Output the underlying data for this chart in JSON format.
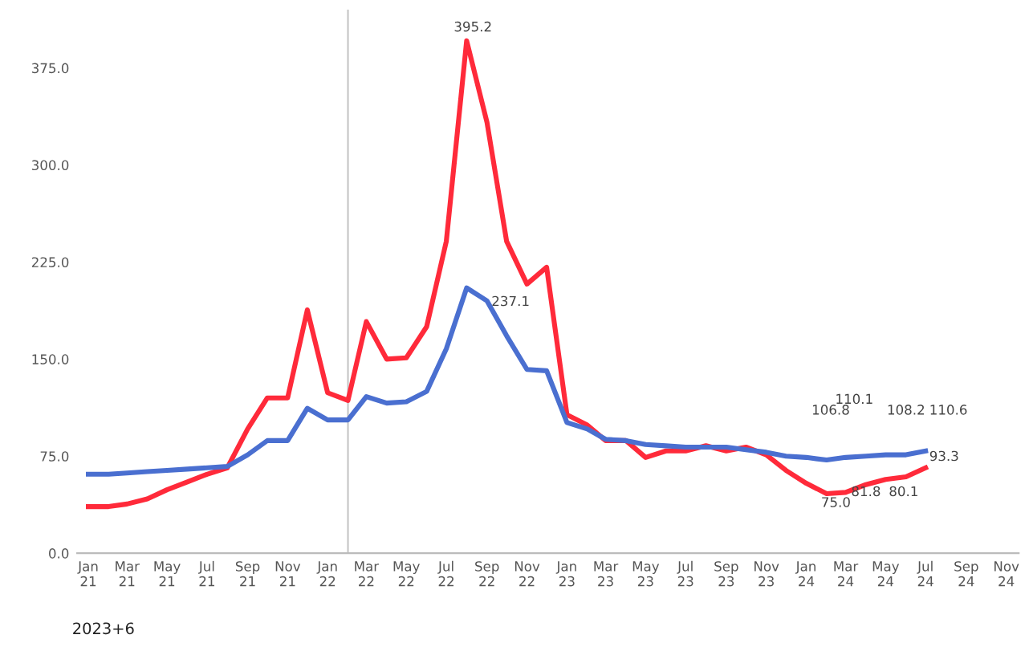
{
  "chart_data": {
    "type": "line",
    "x": [
      "2021-01",
      "2021-02",
      "2021-03",
      "2021-04",
      "2021-05",
      "2021-06",
      "2021-07",
      "2021-08",
      "2021-09",
      "2021-10",
      "2021-11",
      "2021-12",
      "2022-01",
      "2022-02",
      "2022-03",
      "2022-04",
      "2022-05",
      "2022-06",
      "2022-07",
      "2022-08",
      "2022-09",
      "2022-10",
      "2022-11",
      "2022-12",
      "2023-01",
      "2023-02",
      "2023-03",
      "2023-04",
      "2023-05",
      "2023-06",
      "2023-07",
      "2023-08",
      "2023-09",
      "2023-10",
      "2023-11",
      "2023-12",
      "2024-01",
      "2024-02",
      "2024-03",
      "2024-04",
      "2024-05",
      "2024-06",
      "2024-07"
    ],
    "series": [
      {
        "color": "#ff2a3a",
        "values": [
          36,
          36,
          38,
          42,
          49,
          55,
          61,
          66,
          96,
          120,
          120,
          188,
          124,
          118,
          179,
          150,
          151,
          175,
          241,
          396,
          333,
          241,
          208,
          221,
          107,
          99,
          87,
          87,
          74,
          79,
          79,
          83,
          79,
          82,
          76,
          64,
          54,
          46,
          47,
          53,
          57,
          59,
          66
        ]
      },
      {
        "color": "#4a6fd0",
        "values": [
          61,
          61,
          62,
          63,
          64,
          65,
          66,
          67,
          76,
          87,
          87,
          112,
          103,
          103,
          121,
          116,
          117,
          125,
          158,
          205,
          195,
          168,
          142,
          141,
          101,
          96,
          88,
          87,
          84,
          83,
          82,
          82,
          82,
          80,
          78,
          75,
          74,
          72,
          74,
          75,
          76,
          76,
          79
        ]
      }
    ],
    "xlim": [
      "2020-12-15",
      "2024-11-20"
    ],
    "xticks": [
      {
        "value": "2021-01",
        "label": "Jan\n21"
      },
      {
        "value": "2021-03",
        "label": "Mar\n21"
      },
      {
        "value": "2021-05",
        "label": "May\n21"
      },
      {
        "value": "2021-07",
        "label": "Jul\n21"
      },
      {
        "value": "2021-09",
        "label": "Sep\n21"
      },
      {
        "value": "2021-11",
        "label": "Nov\n21"
      },
      {
        "value": "2022-01",
        "label": "Jan\n22"
      },
      {
        "value": "2022-03",
        "label": "Mar\n22"
      },
      {
        "value": "2022-05",
        "label": "May\n22"
      },
      {
        "value": "2022-07",
        "label": "Jul\n22"
      },
      {
        "value": "2022-09",
        "label": "Sep\n22"
      },
      {
        "value": "2022-11",
        "label": "Nov\n22"
      },
      {
        "value": "2023-01",
        "label": "Jan\n23"
      },
      {
        "value": "2023-03",
        "label": "Mar\n23"
      },
      {
        "value": "2023-05",
        "label": "May\n23"
      },
      {
        "value": "2023-07",
        "label": "Jul\n23"
      },
      {
        "value": "2023-09",
        "label": "Sep\n23"
      },
      {
        "value": "2023-11",
        "label": "Nov\n23"
      },
      {
        "value": "2024-01",
        "label": "Jan\n24"
      },
      {
        "value": "2024-03",
        "label": "Mar\n24"
      },
      {
        "value": "2024-05",
        "label": "May\n24"
      },
      {
        "value": "2024-07",
        "label": "Jul\n24"
      },
      {
        "value": "2024-09",
        "label": "Sep\n24"
      },
      {
        "value": "2024-11",
        "label": "Nov\n24"
      }
    ],
    "ylim": [
      0,
      420
    ],
    "yticks": [
      {
        "value": 0,
        "label": "0.0"
      },
      {
        "value": 75,
        "label": "75.0"
      },
      {
        "value": 150,
        "label": "150.0"
      },
      {
        "value": 225,
        "label": "225.0"
      },
      {
        "value": 300,
        "label": "300.0"
      },
      {
        "value": 375,
        "label": "375.0"
      }
    ],
    "ref_lines": [
      {
        "axis": "x",
        "value": "2022-02",
        "color": "#c8c8c8"
      }
    ],
    "grid": false,
    "legend": false,
    "marker": "none",
    "line_style": "solid",
    "annotations": [
      "395.2",
      "237.1",
      "106.8",
      "110.1",
      "108.2",
      "110.6",
      "93.3",
      "75.0",
      "81.8",
      "80.1",
      "2023+6"
    ]
  }
}
